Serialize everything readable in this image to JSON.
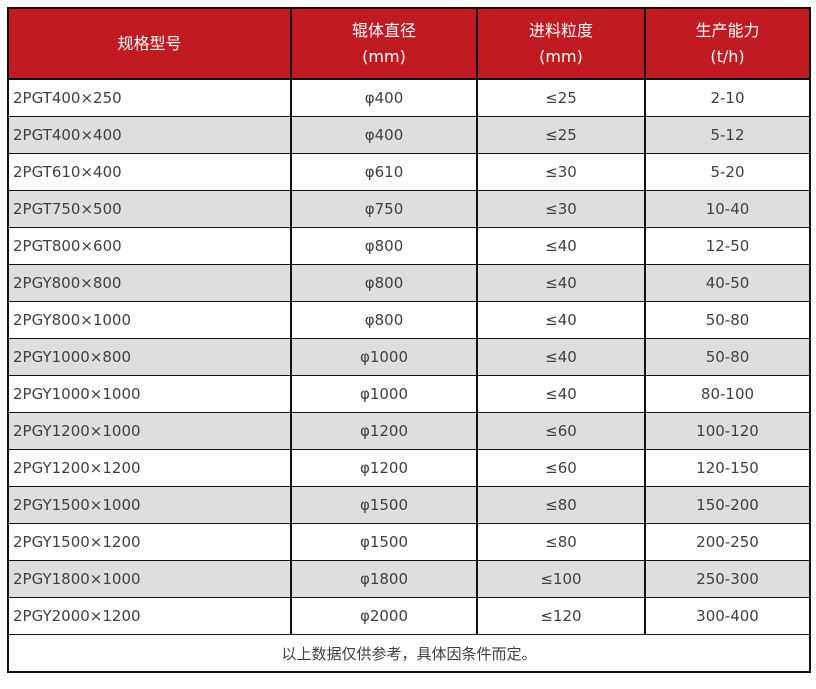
{
  "chart_data": {
    "type": "table",
    "columns": [
      "规格型号",
      "辊体直径 (mm)",
      "进料粒度 (mm)",
      "生产能力 (t/h)"
    ],
    "rows": [
      [
        "2PGT400×250",
        "φ400",
        "≤25",
        "2-10"
      ],
      [
        "2PGT400×400",
        "φ400",
        "≤25",
        "5-12"
      ],
      [
        "2PGT610×400",
        "φ610",
        "≤30",
        "5-20"
      ],
      [
        "2PGT750×500",
        "φ750",
        "≤30",
        "10-40"
      ],
      [
        "2PGT800×600",
        "φ800",
        "≤40",
        "12-50"
      ],
      [
        "2PGY800×800",
        "φ800",
        "≤40",
        "40-50"
      ],
      [
        "2PGY800×1000",
        "φ800",
        "≤40",
        "50-80"
      ],
      [
        "2PGY1000×800",
        "φ1000",
        "≤40",
        "50-80"
      ],
      [
        "2PGY1000×1000",
        "φ1000",
        "≤40",
        "80-100"
      ],
      [
        "2PGY1200×1000",
        "φ1200",
        "≤60",
        "100-120"
      ],
      [
        "2PGY1200×1200",
        "φ1200",
        "≤60",
        "120-150"
      ],
      [
        "2PGY1500×1000",
        "φ1500",
        "≤80",
        "150-200"
      ],
      [
        "2PGY1500×1200",
        "φ1500",
        "≤80",
        "200-250"
      ],
      [
        "2PGY1800×1000",
        "φ1800",
        "≤100",
        "250-300"
      ],
      [
        "2PGY2000×1200",
        "φ2000",
        "≤120",
        "300-400"
      ]
    ],
    "footnote": "以上数据仅供参考，具体因条件而定。"
  },
  "header": {
    "cells": [
      {
        "title": "规格型号",
        "unit": ""
      },
      {
        "title": "辊体直径",
        "unit": "(mm)"
      },
      {
        "title": "进料粒度",
        "unit": "(mm)"
      },
      {
        "title": "生产能力",
        "unit": "(t/h)"
      }
    ]
  },
  "colors": {
    "header_bg": "#C01B20",
    "header_text": "#FFFFFF",
    "row_bg": "#FFFFFF",
    "row_stripe_bg": "#DEDEDE",
    "border": "#111111",
    "body_text": "#404040"
  }
}
